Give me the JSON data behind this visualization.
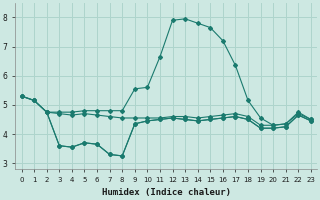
{
  "xlabel": "Humidex (Indice chaleur)",
  "background_color": "#cde8e2",
  "grid_color": "#aed4cc",
  "line_color": "#1a7a6e",
  "ylim": [
    2.8,
    8.5
  ],
  "xlim": [
    -0.5,
    23.5
  ],
  "yticks": [
    3,
    4,
    5,
    6,
    7,
    8
  ],
  "xticks": [
    0,
    1,
    2,
    3,
    4,
    5,
    6,
    7,
    8,
    9,
    10,
    11,
    12,
    13,
    14,
    15,
    16,
    17,
    18,
    19,
    20,
    21,
    22,
    23
  ],
  "line1_x": [
    0,
    1,
    2,
    3,
    4,
    5,
    6,
    7,
    8,
    9,
    10,
    11,
    12,
    13,
    14,
    15,
    16,
    17,
    18,
    19,
    20,
    21,
    22,
    23
  ],
  "line1_y": [
    5.3,
    5.15,
    4.75,
    4.75,
    4.75,
    4.8,
    4.8,
    4.8,
    4.8,
    5.55,
    5.6,
    6.65,
    7.9,
    7.95,
    7.8,
    7.65,
    7.2,
    6.35,
    5.15,
    4.55,
    4.3,
    4.35,
    4.75,
    4.5
  ],
  "line2_x": [
    0,
    1,
    2,
    3,
    4,
    5,
    6,
    7,
    8,
    9,
    10,
    11,
    12,
    13,
    14,
    15,
    16,
    17,
    18,
    19,
    20,
    21,
    22,
    23
  ],
  "line2_y": [
    5.3,
    5.15,
    4.75,
    4.7,
    4.65,
    4.7,
    4.65,
    4.6,
    4.55,
    4.55,
    4.55,
    4.55,
    4.6,
    4.6,
    4.55,
    4.6,
    4.65,
    4.7,
    4.6,
    4.3,
    4.3,
    4.35,
    4.7,
    4.5
  ],
  "line3_x": [
    2,
    3,
    4,
    5,
    6,
    7,
    8,
    9,
    10,
    11,
    12,
    13,
    14,
    15,
    16,
    17,
    18,
    19,
    20,
    21,
    22,
    23
  ],
  "line3_y": [
    4.75,
    3.6,
    3.55,
    3.7,
    3.65,
    3.3,
    3.25,
    4.35,
    4.45,
    4.5,
    4.55,
    4.5,
    4.45,
    4.5,
    4.55,
    4.6,
    4.5,
    4.2,
    4.2,
    4.25,
    4.65,
    4.45
  ],
  "line4_x": [
    0,
    1,
    2,
    3,
    4,
    5,
    6,
    7,
    8,
    9,
    10,
    11,
    12,
    13,
    14,
    15,
    16,
    17,
    18,
    19,
    20,
    21,
    22,
    23
  ],
  "line4_y": [
    5.3,
    5.15,
    4.75,
    3.6,
    3.55,
    3.7,
    3.65,
    3.3,
    3.25,
    4.35,
    4.45,
    4.5,
    4.55,
    4.5,
    4.45,
    4.5,
    4.55,
    4.6,
    4.5,
    4.2,
    4.2,
    4.25,
    4.65,
    4.45
  ]
}
